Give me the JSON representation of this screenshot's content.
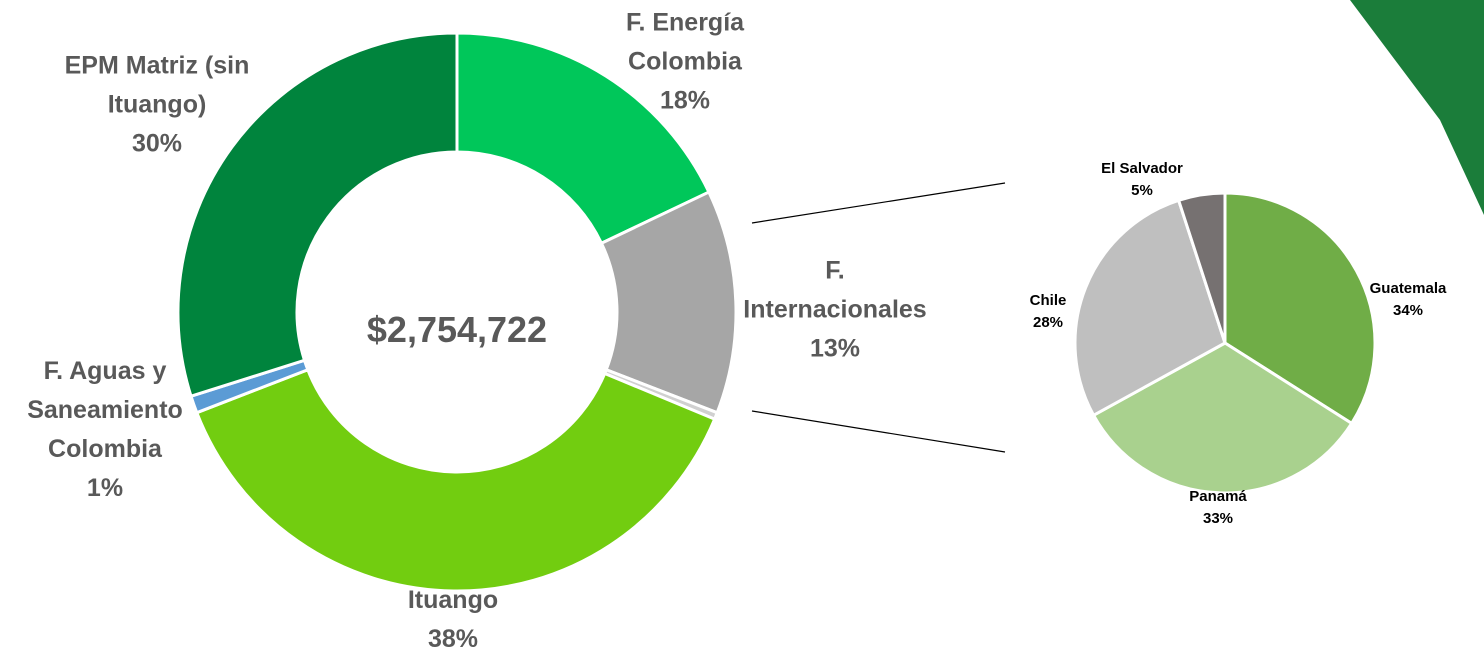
{
  "chart_data": [
    {
      "type": "donut",
      "center_label": "$2,754,722",
      "categories": [
        "F. Energía Colombia",
        "F. Internacionales",
        null,
        "Ituango",
        "F. Aguas y Saneamiento Colombia",
        "EPM Matriz (sin Ituango)"
      ],
      "values": [
        18,
        13,
        0.4,
        38,
        1,
        30
      ],
      "value_labels": [
        "18%",
        "13%",
        null,
        "38%",
        "1%",
        "30%"
      ],
      "colors": [
        "#00c75a",
        "#a6a6a6",
        "#d0d0d0",
        "#72cd10",
        "#5b9bd5",
        "#00843d"
      ]
    },
    {
      "type": "pie",
      "categories": [
        "Guatemala",
        "Panamá",
        "Chile",
        "El Salvador"
      ],
      "values": [
        34,
        33,
        28,
        5
      ],
      "value_labels": [
        "34%",
        "33%",
        "28%",
        "5%"
      ],
      "colors": [
        "#70ad47",
        "#a9d18e",
        "#bfbfbf",
        "#767171"
      ]
    }
  ]
}
